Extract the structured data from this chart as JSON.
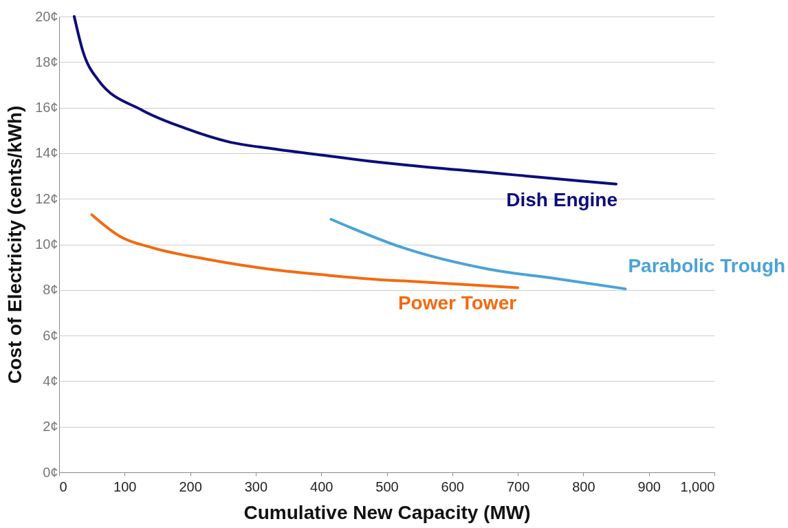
{
  "chart_data": {
    "type": "line",
    "xlabel": "Cumulative New Capacity (MW)",
    "ylabel": "Cost of Electricity (cents/kWh)",
    "xlim": [
      0,
      1000
    ],
    "xticks": [
      0,
      100,
      200,
      300,
      400,
      500,
      600,
      700,
      800,
      900,
      {
        "value": 1000,
        "label": "1,000"
      }
    ],
    "ylim": [
      0,
      20
    ],
    "yticks": [
      {
        "value": 0,
        "label": "0¢"
      },
      {
        "value": 2,
        "label": "2¢"
      },
      {
        "value": 4,
        "label": "4¢"
      },
      {
        "value": 6,
        "label": "6¢"
      },
      {
        "value": 8,
        "label": "8¢"
      },
      {
        "value": 10,
        "label": "10¢"
      },
      {
        "value": 12,
        "label": "12¢"
      },
      {
        "value": 14,
        "label": "14¢"
      },
      {
        "value": 16,
        "label": "16¢"
      },
      {
        "value": 18,
        "label": "18¢"
      },
      {
        "value": 20,
        "label": "20¢"
      }
    ],
    "grid": "y",
    "marker": "none",
    "line_style": "solid",
    "series": [
      {
        "name": "Dish Engine",
        "color": "#0d0d7a",
        "x": [
          23,
          36,
          60,
          126,
          192,
          259,
          325,
          392,
          491,
          524,
          657,
          790,
          850
        ],
        "values": [
          20,
          18.5,
          17.2,
          15.9,
          15.1,
          14.5,
          14.2,
          13.95,
          13.6,
          13.5,
          13.15,
          12.8,
          12.65
        ]
      },
      {
        "name": "Parabolic Trough",
        "color": "#4aa3d6",
        "x": [
          415,
          525,
          658,
          758,
          864
        ],
        "values": [
          11.1,
          9.85,
          8.9,
          8.5,
          8.05
        ]
      },
      {
        "name": "Power Tower",
        "color": "#f26a10",
        "x": [
          50,
          93,
          143,
          225,
          325,
          409,
          491,
          525,
          700
        ],
        "values": [
          11.3,
          10.35,
          9.85,
          9.35,
          8.9,
          8.65,
          8.45,
          8.4,
          8.1
        ]
      }
    ]
  }
}
